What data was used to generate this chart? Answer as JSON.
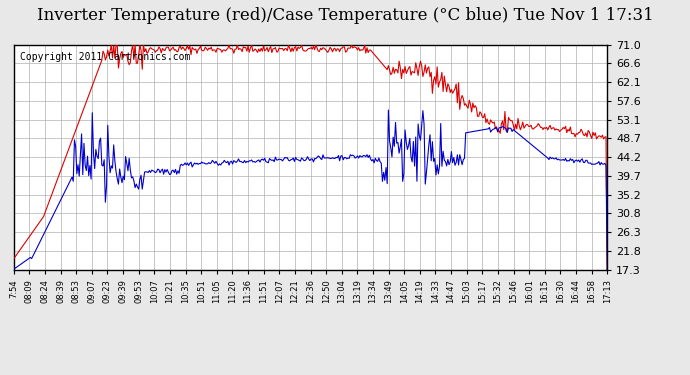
{
  "title": "Inverter Temperature (red)/Case Temperature (°C blue) Tue Nov 1 17:31",
  "copyright": "Copyright 2011 Cartronics.com",
  "yticks": [
    17.3,
    21.8,
    26.3,
    30.8,
    35.2,
    39.7,
    44.2,
    48.7,
    53.1,
    57.6,
    62.1,
    66.6,
    71.0
  ],
  "xtick_labels": [
    "7:54",
    "08:09",
    "08:24",
    "08:39",
    "08:53",
    "09:07",
    "09:23",
    "09:39",
    "09:53",
    "10:07",
    "10:21",
    "10:35",
    "10:51",
    "11:05",
    "11:20",
    "11:36",
    "11:51",
    "12:07",
    "12:21",
    "12:36",
    "12:50",
    "13:04",
    "13:19",
    "13:34",
    "13:49",
    "14:05",
    "14:19",
    "14:33",
    "14:47",
    "15:03",
    "15:17",
    "15:32",
    "15:46",
    "16:01",
    "16:15",
    "16:30",
    "16:44",
    "16:58",
    "17:13"
  ],
  "ymin": 17.3,
  "ymax": 71.0,
  "background_color": "#e8e8e8",
  "plot_bg_color": "#ffffff",
  "grid_color": "#b0b0b0",
  "red_color": "#dd0000",
  "blue_color": "#0000cc",
  "title_fontsize": 12,
  "copyright_fontsize": 7
}
